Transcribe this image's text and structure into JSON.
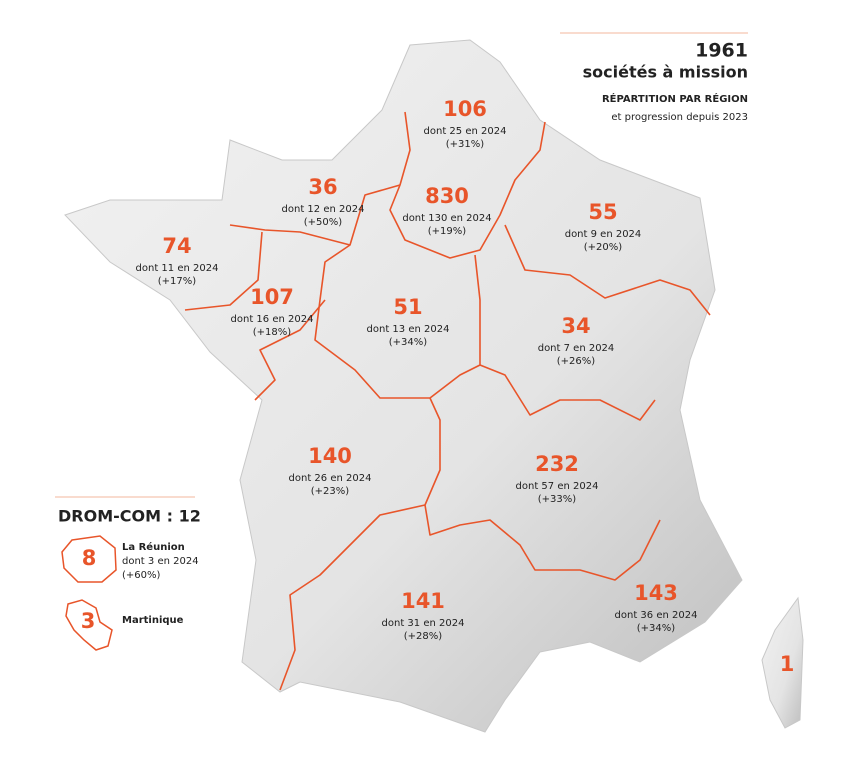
{
  "header": {
    "total": "1961",
    "subtitle": "sociétés à mission",
    "heading": "RÉPARTITION PAR RÉGION",
    "note": "et progression depuis 2023"
  },
  "regions": [
    {
      "count": "106",
      "new": "dont 25 en 2024",
      "growth": "(+31%)"
    },
    {
      "count": "36",
      "new": "dont 12 en 2024",
      "growth": "(+50%)"
    },
    {
      "count": "830",
      "new": "dont 130 en 2024",
      "growth": "(+19%)"
    },
    {
      "count": "55",
      "new": "dont 9 en 2024",
      "growth": "(+20%)"
    },
    {
      "count": "74",
      "new": "dont 11 en 2024",
      "growth": "(+17%)"
    },
    {
      "count": "107",
      "new": "dont 16 en 2024",
      "growth": "(+18%)"
    },
    {
      "count": "51",
      "new": "dont 13 en 2024",
      "growth": "(+34%)"
    },
    {
      "count": "34",
      "new": "dont 7 en 2024",
      "growth": "(+26%)"
    },
    {
      "count": "140",
      "new": "dont 26 en 2024",
      "growth": "(+23%)"
    },
    {
      "count": "232",
      "new": "dont 57 en 2024",
      "growth": "(+33%)"
    },
    {
      "count": "141",
      "new": "dont 31 en 2024",
      "growth": "(+28%)"
    },
    {
      "count": "143",
      "new": "dont 36 en 2024",
      "growth": "(+34%)"
    }
  ],
  "corsica": {
    "count": "1"
  },
  "drom_com": {
    "title": "DROM-COM : 12",
    "territories": [
      {
        "name": "La Réunion",
        "count": "8",
        "new": "dont 3 en 2024",
        "growth": "(+60%)"
      },
      {
        "name": "Martinique",
        "count": "3"
      }
    ]
  }
}
